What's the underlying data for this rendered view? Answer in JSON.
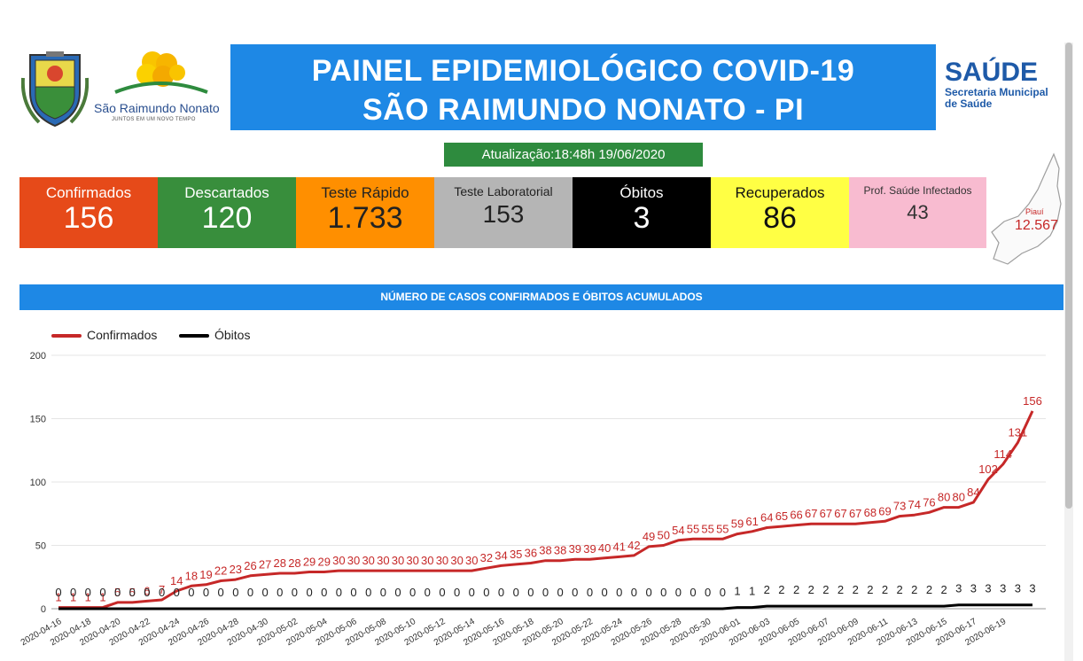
{
  "header": {
    "city_name": "São Raimundo Nonato",
    "city_tagline": "JUNTOS EM UM NOVO TEMPO",
    "title_line1": "PAINEL EPIDEMIOLÓGICO COVID-19",
    "title_line2": "SÃO RAIMUNDO NONATO - PI",
    "saude_big": "SAÚDE",
    "saude_line1": "Secretaria Municipal",
    "saude_line2": "de Saúde",
    "update": "Atualização:18:48h 19/06/2020",
    "title_color": "#1e88e5"
  },
  "cards": [
    {
      "label": "Confirmados",
      "value": "156",
      "bg": "#e64a19",
      "color": "#ffffff"
    },
    {
      "label": "Descartados",
      "value": "120",
      "bg": "#388e3c",
      "color": "#ffffff"
    },
    {
      "label": "Teste Rápido",
      "value": "1.733",
      "bg": "#ff8f00",
      "color": "#222222"
    },
    {
      "label": "Teste Laboratorial",
      "value": "153",
      "bg": "#b5b5b5",
      "color": "#222222"
    },
    {
      "label": "Óbitos",
      "value": "3",
      "bg": "#000000",
      "color": "#ffffff"
    },
    {
      "label": "Recuperados",
      "value": "86",
      "bg": "#ffff44",
      "color": "#111111"
    },
    {
      "label": "Prof. Saúde Infectados",
      "value": "43",
      "bg": "#f8bbd0",
      "color": "#333333"
    }
  ],
  "map": {
    "label": "Piauí",
    "value": "12.567"
  },
  "chart_data": {
    "type": "line",
    "title": "NÚMERO DE CASOS CONFIRMADOS E ÓBITOS ACUMULADOS",
    "legend_position": "top-left",
    "grid": true,
    "ylim": [
      0,
      200
    ],
    "yticks": [
      0,
      50,
      100,
      150,
      200
    ],
    "x_tick_labels": [
      "2020-04-16",
      "2020-04-18",
      "2020-04-20",
      "2020-04-22",
      "2020-04-24",
      "2020-04-26",
      "2020-04-28",
      "2020-04-30",
      "2020-05-02",
      "2020-05-04",
      "2020-05-06",
      "2020-05-08",
      "2020-05-10",
      "2020-05-12",
      "2020-05-14",
      "2020-05-16",
      "2020-05-18",
      "2020-05-20",
      "2020-05-22",
      "2020-05-24",
      "2020-05-26",
      "2020-05-28",
      "2020-05-30",
      "2020-06-01",
      "2020-06-03",
      "2020-06-05",
      "2020-06-07",
      "2020-06-09",
      "2020-06-11",
      "2020-06-13",
      "2020-06-15",
      "2020-06-17",
      "2020-06-19"
    ],
    "series": [
      {
        "name": "Confirmados",
        "color": "#c62828",
        "values": [
          1,
          1,
          1,
          1,
          5,
          5,
          6,
          7,
          14,
          18,
          19,
          22,
          23,
          26,
          27,
          28,
          28,
          29,
          29,
          30,
          30,
          30,
          30,
          30,
          30,
          30,
          30,
          30,
          30,
          32,
          34,
          35,
          36,
          38,
          38,
          39,
          39,
          40,
          41,
          42,
          49,
          50,
          54,
          55,
          55,
          55,
          59,
          61,
          64,
          65,
          66,
          67,
          67,
          67,
          67,
          68,
          69,
          73,
          74,
          76,
          80,
          80,
          84,
          102,
          114,
          131,
          156
        ]
      },
      {
        "name": "Óbitos",
        "color": "#000000",
        "values": [
          0,
          0,
          0,
          0,
          0,
          0,
          0,
          0,
          0,
          0,
          0,
          0,
          0,
          0,
          0,
          0,
          0,
          0,
          0,
          0,
          0,
          0,
          0,
          0,
          0,
          0,
          0,
          0,
          0,
          0,
          0,
          0,
          0,
          0,
          0,
          0,
          0,
          0,
          0,
          0,
          0,
          0,
          0,
          0,
          0,
          0,
          1,
          1,
          2,
          2,
          2,
          2,
          2,
          2,
          2,
          2,
          2,
          2,
          2,
          2,
          2,
          3,
          3,
          3,
          3,
          3,
          3
        ]
      }
    ]
  }
}
